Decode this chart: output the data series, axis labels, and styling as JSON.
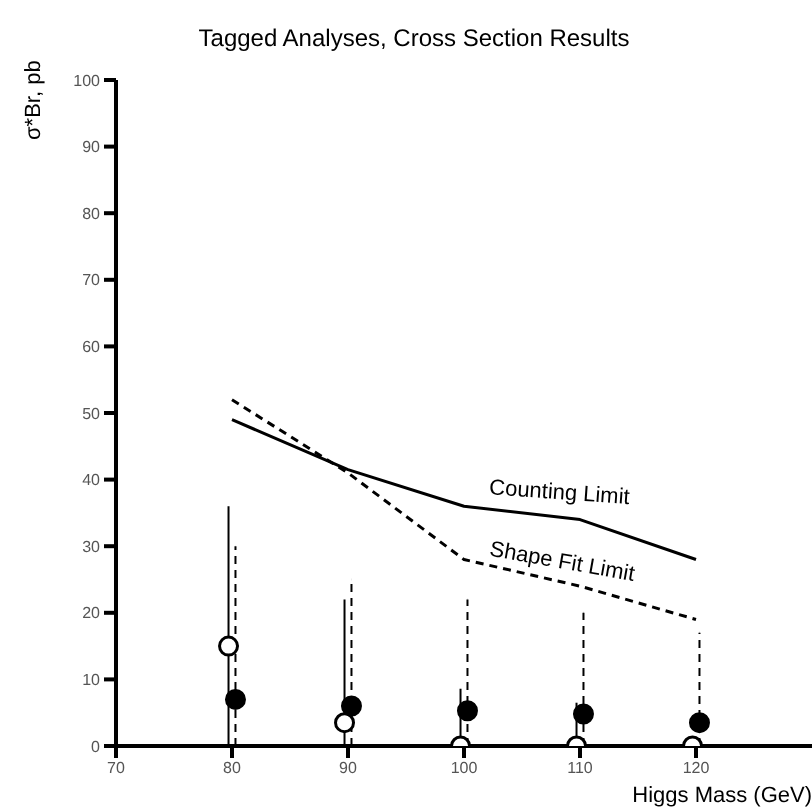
{
  "chart_data": {
    "type": "scatter",
    "title": "Tagged Analyses, Cross Section Results",
    "xlabel": "Higgs Mass (GeV)",
    "ylabel": "σ*Br, pb",
    "xlim": [
      70,
      130
    ],
    "xticks": [
      70,
      80,
      90,
      100,
      110,
      120
    ],
    "ylim": [
      0,
      100
    ],
    "yticks": [
      0,
      10,
      20,
      30,
      40,
      50,
      60,
      70,
      80,
      90,
      100
    ],
    "grid": false,
    "legend": false,
    "series": [
      {
        "name": "Counting Limit",
        "type": "line",
        "color": "#000000",
        "line_style": "solid",
        "marker": "none",
        "x": [
          80,
          90,
          100,
          110,
          120
        ],
        "values": [
          49,
          41.5,
          36,
          34,
          28
        ]
      },
      {
        "name": "Shape Fit Limit",
        "type": "line",
        "color": "#000000",
        "line_style": "dashed",
        "marker": "none",
        "x": [
          80,
          90,
          100,
          110,
          120
        ],
        "values": [
          52,
          41,
          28,
          24,
          19
        ]
      },
      {
        "color": "#000000",
        "line_style": "solid",
        "marker": "circle",
        "x": [
          79.7,
          89.7,
          99.7,
          109.7,
          119.7
        ],
        "values": [
          15,
          3.5,
          0,
          0,
          0
        ],
        "errors": [
          [
            0,
            36
          ],
          [
            0,
            22
          ],
          [
            0,
            8.6
          ],
          [
            0,
            6.5
          ],
          null
        ]
      },
      {
        "color": "#000000",
        "line_style": "dashed",
        "marker": "circle",
        "x": [
          80.3,
          90.3,
          100.3,
          110.3,
          120.3
        ],
        "values": [
          7,
          6,
          5.3,
          4.8,
          3.5
        ],
        "errors": [
          [
            0,
            30
          ],
          [
            0,
            25
          ],
          [
            0,
            22
          ],
          [
            0,
            20
          ],
          [
            0,
            17
          ]
        ]
      }
    ]
  }
}
